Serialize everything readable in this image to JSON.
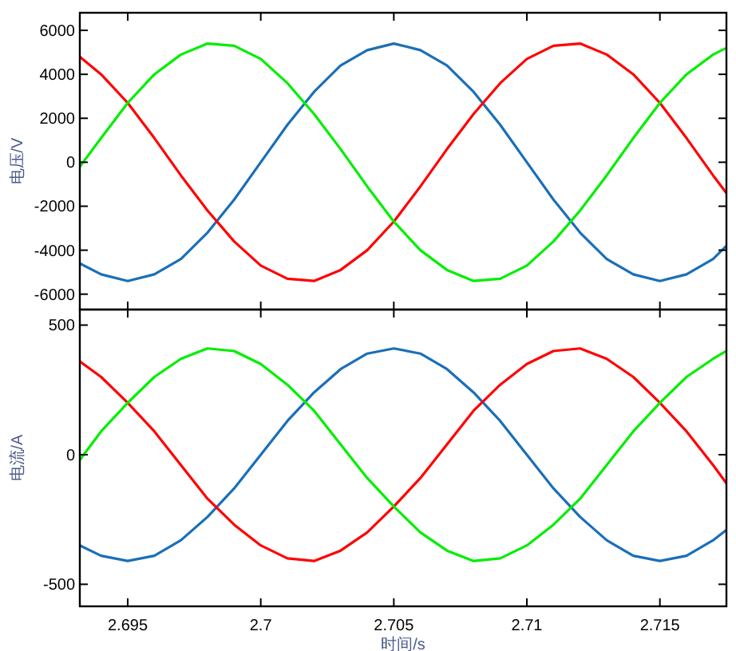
{
  "chart_data": [
    {
      "type": "line",
      "ylabel": "电压/V",
      "x": [
        2.6932,
        2.694,
        2.695,
        2.696,
        2.697,
        2.698,
        2.699,
        2.7,
        2.701,
        2.702,
        2.703,
        2.704,
        2.705,
        2.706,
        2.707,
        2.708,
        2.709,
        2.71,
        2.711,
        2.712,
        2.713,
        2.714,
        2.715,
        2.716,
        2.717,
        2.7175
      ],
      "series": [
        {
          "color": "#1a6fb8",
          "values": [
            -4600,
            -5100,
            -5400,
            -5100,
            -4400,
            -3200,
            -1700,
            0,
            1700,
            3200,
            4400,
            5100,
            5400,
            5100,
            4400,
            3200,
            1700,
            0,
            -1700,
            -3200,
            -4400,
            -5100,
            -5400,
            -5100,
            -4400,
            -3800
          ]
        },
        {
          "color": "#ff0000",
          "values": [
            4800,
            4000,
            2700,
            1100,
            -600,
            -2200,
            -3600,
            -4700,
            -5300,
            -5400,
            -4900,
            -4000,
            -2700,
            -1100,
            600,
            2200,
            3600,
            4700,
            5300,
            5400,
            4900,
            4000,
            2700,
            1100,
            -600,
            -1400
          ]
        },
        {
          "color": "#00ee00",
          "values": [
            -200,
            1100,
            2700,
            4000,
            4900,
            5400,
            5300,
            4700,
            3600,
            2200,
            600,
            -1100,
            -2700,
            -4000,
            -4900,
            -5400,
            -5300,
            -4700,
            -3600,
            -2200,
            -600,
            1100,
            2700,
            4000,
            4900,
            5200
          ]
        }
      ],
      "xlim": [
        2.6932,
        2.7175
      ],
      "xticks": [
        {
          "value": 2.695,
          "label": null
        },
        {
          "value": 2.7,
          "label": null
        },
        {
          "value": 2.705,
          "label": null
        },
        {
          "value": 2.71,
          "label": null
        },
        {
          "value": 2.715,
          "label": null
        }
      ],
      "ylim": [
        -6700,
        6800
      ],
      "yticks": [
        -6000,
        -4000,
        -2000,
        0,
        2000,
        4000,
        6000
      ],
      "tick_labels": "y"
    },
    {
      "type": "line",
      "ylabel": "电流/A",
      "xlabel": "时间/s",
      "x": [
        2.6932,
        2.694,
        2.695,
        2.696,
        2.697,
        2.698,
        2.699,
        2.7,
        2.701,
        2.702,
        2.703,
        2.704,
        2.705,
        2.706,
        2.707,
        2.708,
        2.709,
        2.71,
        2.711,
        2.712,
        2.713,
        2.714,
        2.715,
        2.716,
        2.717,
        2.7175
      ],
      "series": [
        {
          "color": "#1a6fb8",
          "values": [
            -350,
            -390,
            -410,
            -390,
            -330,
            -240,
            -130,
            0,
            130,
            240,
            330,
            390,
            410,
            390,
            330,
            240,
            130,
            0,
            -130,
            -240,
            -330,
            -390,
            -410,
            -390,
            -330,
            -290
          ]
        },
        {
          "color": "#ff0000",
          "values": [
            360,
            300,
            200,
            90,
            -40,
            -170,
            -270,
            -350,
            -400,
            -410,
            -370,
            -300,
            -200,
            -90,
            40,
            170,
            270,
            350,
            400,
            410,
            370,
            300,
            200,
            90,
            -40,
            -110
          ]
        },
        {
          "color": "#00ee00",
          "values": [
            -20,
            90,
            200,
            300,
            370,
            410,
            400,
            350,
            270,
            170,
            40,
            -90,
            -200,
            -300,
            -370,
            -410,
            -400,
            -350,
            -270,
            -170,
            -40,
            90,
            200,
            300,
            370,
            400
          ]
        }
      ],
      "xlim": [
        2.6932,
        2.7175
      ],
      "xticks": [
        {
          "value": 2.695,
          "label": "2.695"
        },
        {
          "value": 2.7,
          "label": "2.7"
        },
        {
          "value": 2.705,
          "label": "2.705"
        },
        {
          "value": 2.71,
          "label": "2.71"
        },
        {
          "value": 2.715,
          "label": "2.715"
        }
      ],
      "ylim": [
        -585,
        560
      ],
      "yticks": [
        -500,
        0,
        500
      ]
    }
  ]
}
